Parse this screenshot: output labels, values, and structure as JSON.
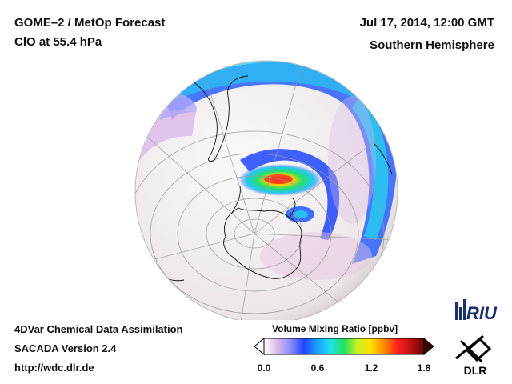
{
  "header": {
    "left_line1": "GOME–2 / MetOp Forecast",
    "left_line2": "ClO at 55.4 hPa",
    "right_line1": "Jul 17, 2014, 12:00 GMT",
    "right_line2": "Southern Hemisphere"
  },
  "footer": {
    "line1": "4DVar Chemical Data Assimilation",
    "line2": "SACADA Version 2.4",
    "line3": "http://wdc.dlr.de"
  },
  "colorbar": {
    "title": "Volume Mixing Ratio [ppbv]",
    "ticks": [
      "0.0",
      "0.6",
      "1.2",
      "1.8"
    ],
    "range": [
      0.0,
      1.8
    ],
    "colors": [
      "#ffffff",
      "#d9b8e8",
      "#8a8cff",
      "#2244ff",
      "#1aa0ff",
      "#22e0e8",
      "#22e060",
      "#c8f020",
      "#ffe000",
      "#ff8a00",
      "#ff2020",
      "#c01010",
      "#600808"
    ]
  },
  "logos": {
    "riu": "RIU",
    "dlr": "DLR"
  },
  "map": {
    "projection": "orthographic",
    "hemisphere": "south",
    "land_color": "#f2eeee",
    "ocean_color": "#f4f0f2"
  }
}
